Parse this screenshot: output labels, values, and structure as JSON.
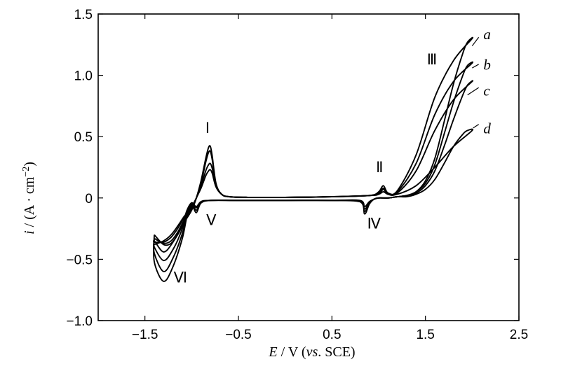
{
  "chart_data": {
    "type": "line",
    "title": "",
    "xlabel": "E / V (vs . SCE)",
    "xlabel_parts": {
      "var": "E",
      "unit": " / V (",
      "ref_italic": "vs",
      "ref_rest": ". SCE)"
    },
    "ylabel": "i / (A · cm⁻²)",
    "ylabel_parts": {
      "var": "i",
      "unit": " / (A · cm",
      "sup": "−2",
      "close": ")"
    },
    "xlim": [
      -2.0,
      2.5
    ],
    "ylim": [
      -1.0,
      1.5
    ],
    "xticks": [
      -1.5,
      -0.5,
      0.5,
      1.5,
      2.5
    ],
    "xtick_labels": [
      "−1.5",
      "−0.5",
      "0.5",
      "1.5",
      "2.5"
    ],
    "yticks": [
      -1.0,
      -0.5,
      0,
      0.5,
      1.0,
      1.5
    ],
    "ytick_labels": [
      "−1.0",
      "−0.5",
      "0",
      "0.5",
      "1.0",
      "1.5"
    ],
    "grid": false,
    "series": [
      {
        "name": "a",
        "x": [
          -1.4,
          -1.3,
          -1.22,
          -1.15,
          -1.08,
          -1.0,
          -0.95,
          -0.9,
          -0.85,
          -0.82,
          -0.8,
          -0.78,
          -0.74,
          -0.68,
          -0.6,
          -0.4,
          0.0,
          0.5,
          0.9,
          1.0,
          1.05,
          1.1,
          1.2,
          1.4,
          1.6,
          1.8,
          2.0,
          1.95,
          1.9,
          1.8,
          1.7,
          1.6,
          1.5,
          1.4,
          1.3,
          1.2,
          1.1,
          1.0,
          0.95,
          0.9,
          0.85,
          0.8,
          0.5,
          0.0,
          -0.5,
          -0.8,
          -0.9,
          -0.95,
          -1.0,
          -1.05,
          -1.1,
          -1.2,
          -1.3,
          -1.4
        ],
        "y": [
          -0.3,
          -0.38,
          -0.37,
          -0.3,
          -0.2,
          -0.1,
          0.0,
          0.14,
          0.32,
          0.41,
          0.42,
          0.34,
          0.12,
          0.03,
          0.01,
          0.005,
          0.005,
          0.01,
          0.02,
          0.05,
          0.1,
          0.04,
          0.06,
          0.35,
          0.82,
          1.12,
          1.3,
          1.27,
          1.18,
          0.93,
          0.62,
          0.32,
          0.14,
          0.05,
          0.02,
          0.01,
          0.0,
          0.0,
          -0.01,
          -0.05,
          -0.13,
          -0.03,
          -0.02,
          -0.02,
          -0.02,
          -0.02,
          -0.04,
          -0.12,
          -0.06,
          -0.15,
          -0.33,
          -0.56,
          -0.68,
          -0.52
        ]
      },
      {
        "name": "b",
        "x": [
          -1.4,
          -1.3,
          -1.22,
          -1.15,
          -1.08,
          -1.0,
          -0.95,
          -0.9,
          -0.85,
          -0.82,
          -0.8,
          -0.78,
          -0.74,
          -0.68,
          -0.6,
          -0.4,
          0.0,
          0.5,
          0.9,
          1.0,
          1.05,
          1.1,
          1.2,
          1.4,
          1.6,
          1.8,
          2.0,
          1.95,
          1.9,
          1.8,
          1.7,
          1.6,
          1.5,
          1.4,
          1.3,
          1.2,
          1.1,
          1.0,
          0.95,
          0.9,
          0.85,
          0.8,
          0.5,
          0.0,
          -0.5,
          -0.8,
          -0.9,
          -0.95,
          -1.0,
          -1.05,
          -1.1,
          -1.2,
          -1.3,
          -1.4
        ],
        "y": [
          -0.33,
          -0.37,
          -0.35,
          -0.28,
          -0.18,
          -0.09,
          0.0,
          0.12,
          0.29,
          0.37,
          0.38,
          0.31,
          0.11,
          0.03,
          0.01,
          0.005,
          0.005,
          0.01,
          0.02,
          0.04,
          0.08,
          0.04,
          0.05,
          0.28,
          0.68,
          0.95,
          1.1,
          1.08,
          1.0,
          0.78,
          0.52,
          0.27,
          0.12,
          0.05,
          0.02,
          0.01,
          0.0,
          0.0,
          -0.01,
          -0.04,
          -0.11,
          -0.03,
          -0.02,
          -0.02,
          -0.02,
          -0.02,
          -0.04,
          -0.1,
          -0.05,
          -0.13,
          -0.29,
          -0.49,
          -0.6,
          -0.45
        ]
      },
      {
        "name": "c",
        "x": [
          -1.4,
          -1.3,
          -1.22,
          -1.15,
          -1.08,
          -1.0,
          -0.95,
          -0.9,
          -0.85,
          -0.82,
          -0.8,
          -0.78,
          -0.74,
          -0.68,
          -0.6,
          -0.4,
          0.0,
          0.5,
          0.9,
          1.0,
          1.05,
          1.1,
          1.2,
          1.4,
          1.6,
          1.8,
          2.0,
          1.95,
          1.9,
          1.8,
          1.7,
          1.6,
          1.5,
          1.4,
          1.3,
          1.2,
          1.1,
          1.0,
          0.95,
          0.9,
          0.85,
          0.8,
          0.5,
          0.0,
          -0.5,
          -0.8,
          -0.9,
          -0.95,
          -1.0,
          -1.05,
          -1.1,
          -1.2,
          -1.3,
          -1.4
        ],
        "y": [
          -0.36,
          -0.36,
          -0.32,
          -0.25,
          -0.16,
          -0.08,
          0.0,
          0.1,
          0.22,
          0.27,
          0.28,
          0.24,
          0.1,
          0.03,
          0.01,
          0.005,
          0.005,
          0.01,
          0.02,
          0.03,
          0.07,
          0.03,
          0.04,
          0.22,
          0.55,
          0.8,
          0.95,
          0.92,
          0.84,
          0.64,
          0.42,
          0.22,
          0.1,
          0.04,
          0.02,
          0.01,
          0.0,
          0.0,
          -0.01,
          -0.04,
          -0.09,
          -0.03,
          -0.02,
          -0.02,
          -0.02,
          -0.02,
          -0.03,
          -0.08,
          -0.04,
          -0.11,
          -0.25,
          -0.42,
          -0.51,
          -0.4
        ]
      },
      {
        "name": "d",
        "x": [
          -1.4,
          -1.3,
          -1.22,
          -1.15,
          -1.08,
          -1.0,
          -0.95,
          -0.9,
          -0.85,
          -0.82,
          -0.8,
          -0.78,
          -0.74,
          -0.68,
          -0.6,
          -0.4,
          0.0,
          0.5,
          0.9,
          1.0,
          1.05,
          1.1,
          1.2,
          1.4,
          1.6,
          1.8,
          2.0,
          1.95,
          1.9,
          1.8,
          1.7,
          1.6,
          1.5,
          1.4,
          1.3,
          1.2,
          1.1,
          1.0,
          0.95,
          0.9,
          0.85,
          0.8,
          0.5,
          0.0,
          -0.5,
          -0.8,
          -0.9,
          -0.95,
          -1.0,
          -1.05,
          -1.1,
          -1.2,
          -1.3,
          -1.4
        ],
        "y": [
          -0.38,
          -0.35,
          -0.3,
          -0.23,
          -0.15,
          -0.07,
          0.0,
          0.08,
          0.18,
          0.22,
          0.23,
          0.2,
          0.09,
          0.03,
          0.01,
          0.005,
          0.005,
          0.01,
          0.02,
          0.03,
          0.05,
          0.03,
          0.03,
          0.1,
          0.25,
          0.42,
          0.55,
          0.55,
          0.52,
          0.42,
          0.28,
          0.15,
          0.07,
          0.03,
          0.01,
          0.01,
          0.0,
          0.0,
          -0.01,
          -0.03,
          -0.07,
          -0.02,
          -0.02,
          -0.02,
          -0.02,
          -0.02,
          -0.03,
          -0.07,
          -0.04,
          -0.1,
          -0.22,
          -0.36,
          -0.44,
          -0.35
        ]
      }
    ],
    "peak_annotations": [
      {
        "label": "Ⅰ",
        "x": -0.83,
        "y": 0.53
      },
      {
        "label": "Ⅱ",
        "x": 1.01,
        "y": 0.21
      },
      {
        "label": "Ⅲ",
        "x": 1.57,
        "y": 1.09
      },
      {
        "label": "Ⅳ",
        "x": 0.95,
        "y": -0.25
      },
      {
        "label": "Ⅴ",
        "x": -0.79,
        "y": -0.22
      },
      {
        "label": "Ⅵ",
        "x": -1.12,
        "y": -0.69
      }
    ],
    "curve_labels": [
      {
        "label": "a",
        "x": 2.12,
        "y": 1.33,
        "lx": 2.07,
        "ly": 1.31,
        "tx": 2.0,
        "ty": 1.24
      },
      {
        "label": "b",
        "x": 2.12,
        "y": 1.08,
        "lx": 2.07,
        "ly": 1.09,
        "tx": 2.0,
        "ty": 1.06
      },
      {
        "label": "c",
        "x": 2.12,
        "y": 0.87,
        "lx": 2.07,
        "ly": 0.9,
        "tx": 1.95,
        "ty": 0.84
      },
      {
        "label": "d",
        "x": 2.12,
        "y": 0.56,
        "lx": 2.07,
        "ly": 0.6,
        "tx": 2.01,
        "ty": 0.57
      }
    ]
  }
}
